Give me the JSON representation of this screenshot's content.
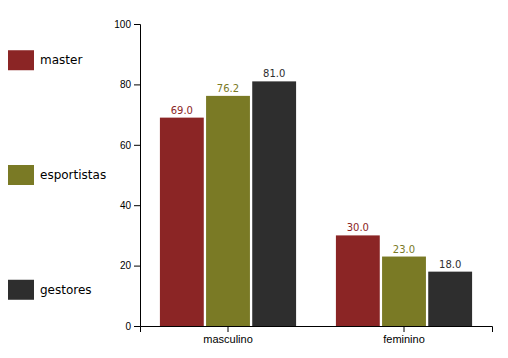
{
  "chart_data": {
    "type": "bar",
    "categories": [
      "masculino",
      "feminino"
    ],
    "series": [
      {
        "name": "master",
        "color": "#8B2525",
        "values": [
          69.0,
          30.0
        ],
        "value_labels": [
          "69.0",
          "30.0"
        ]
      },
      {
        "name": "esportistas",
        "color": "#7A7A25",
        "values": [
          76.2,
          23.0
        ],
        "value_labels": [
          "76.2",
          "23.0"
        ]
      },
      {
        "name": "gestores",
        "color": "#2E2E2E",
        "values": [
          81.0,
          18.0
        ],
        "value_labels": [
          "81.0",
          "18.0"
        ]
      }
    ],
    "ylim": [
      0,
      100
    ],
    "yticks": [
      0,
      20,
      40,
      60,
      80,
      100
    ],
    "grid": false,
    "legend": "left",
    "data_labels": true
  }
}
